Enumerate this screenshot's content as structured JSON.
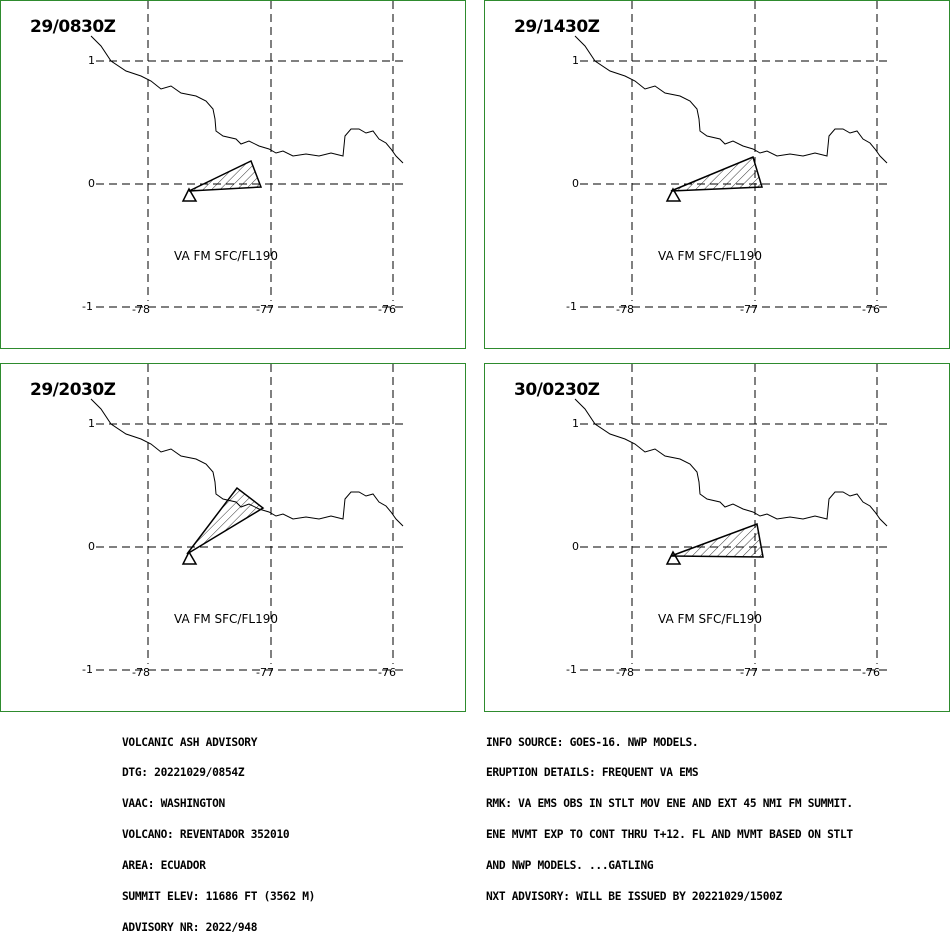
{
  "panels": [
    {
      "time": "29/0830Z",
      "label": "VA FM SFC/FL190"
    },
    {
      "time": "29/1430Z",
      "label": "VA FM SFC/FL190"
    },
    {
      "time": "29/2030Z",
      "label": "VA FM SFC/FL190"
    },
    {
      "time": "30/0230Z",
      "label": "VA FM SFC/FL190"
    }
  ],
  "axis": {
    "lat_ticks": [
      "1",
      "0",
      "-1"
    ],
    "lon_ticks": [
      "-78",
      "-77",
      "-76"
    ]
  },
  "advisory_left": [
    "VOLCANIC ASH ADVISORY",
    "DTG: 20221029/0854Z",
    "VAAC: WASHINGTON",
    "VOLCANO: REVENTADOR 352010",
    "AREA: ECUADOR",
    "SUMMIT ELEV: 11686 FT (3562 M)",
    "ADVISORY NR: 2022/948"
  ],
  "advisory_right": [
    "INFO SOURCE: GOES-16. NWP MODELS.",
    "ERUPTION DETAILS: FREQUENT VA EMS",
    "RMK: VA EMS OBS IN STLT MOV ENE AND EXT 45 NMI FM SUMMIT.",
    "ENE MVMT EXP TO CONT THRU T+12. FL AND MVMT BASED ON STLT",
    "AND NWP MODELS. ...GATLING",
    "NXT ADVISORY: WILL BE ISSUED BY 20221029/1500Z"
  ],
  "colors": {
    "frame": "#2e8b2e",
    "lines": "#000000"
  },
  "icons": {
    "volcano": "triangle-volcano-icon"
  }
}
